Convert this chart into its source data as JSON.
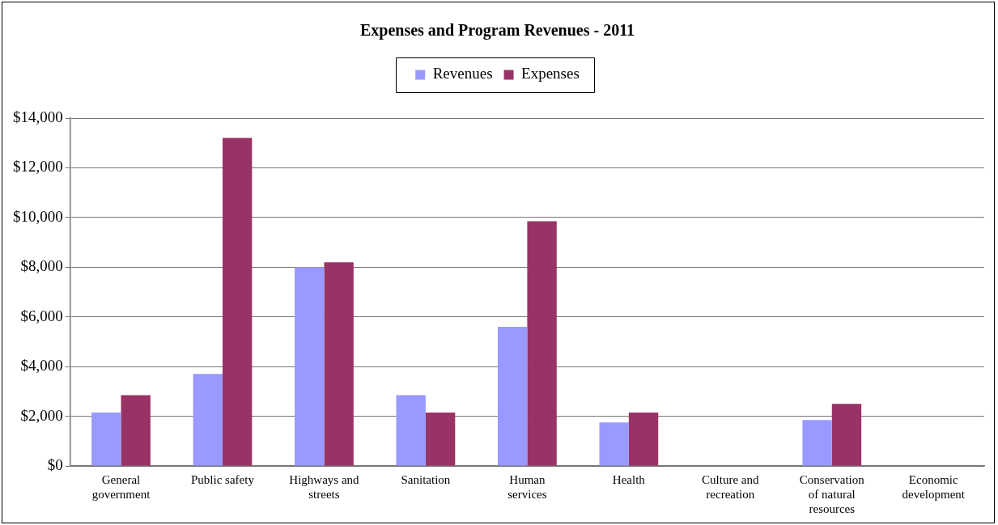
{
  "chart_data": {
    "type": "bar",
    "title": "Expenses and Program Revenues - 2011",
    "categories": [
      "General government",
      "Public safety",
      "Highways and streets",
      "Sanitation",
      "Human services",
      "Health",
      "Culture and recreation",
      "Conservation of natural resources",
      "Economic development"
    ],
    "series": [
      {
        "name": "Revenues",
        "color": "#9999ff",
        "values": [
          2150,
          3700,
          8000,
          2850,
          5600,
          1750,
          0,
          1850,
          0
        ]
      },
      {
        "name": "Expenses",
        "color": "#993366",
        "values": [
          2850,
          13200,
          8200,
          2150,
          9850,
          2150,
          0,
          2500,
          0
        ]
      }
    ],
    "ylim": [
      0,
      14000
    ],
    "yticks": [
      {
        "value": 0,
        "label": "$0"
      },
      {
        "value": 2000,
        "label": "$2,000"
      },
      {
        "value": 4000,
        "label": "$4,000"
      },
      {
        "value": 6000,
        "label": "$6,000"
      },
      {
        "value": 8000,
        "label": "$8,000"
      },
      {
        "value": 10000,
        "label": "$10,000"
      },
      {
        "value": 12000,
        "label": "$12,000"
      },
      {
        "value": 14000,
        "label": "$14,000"
      }
    ],
    "grid": "y",
    "legend": "top"
  }
}
